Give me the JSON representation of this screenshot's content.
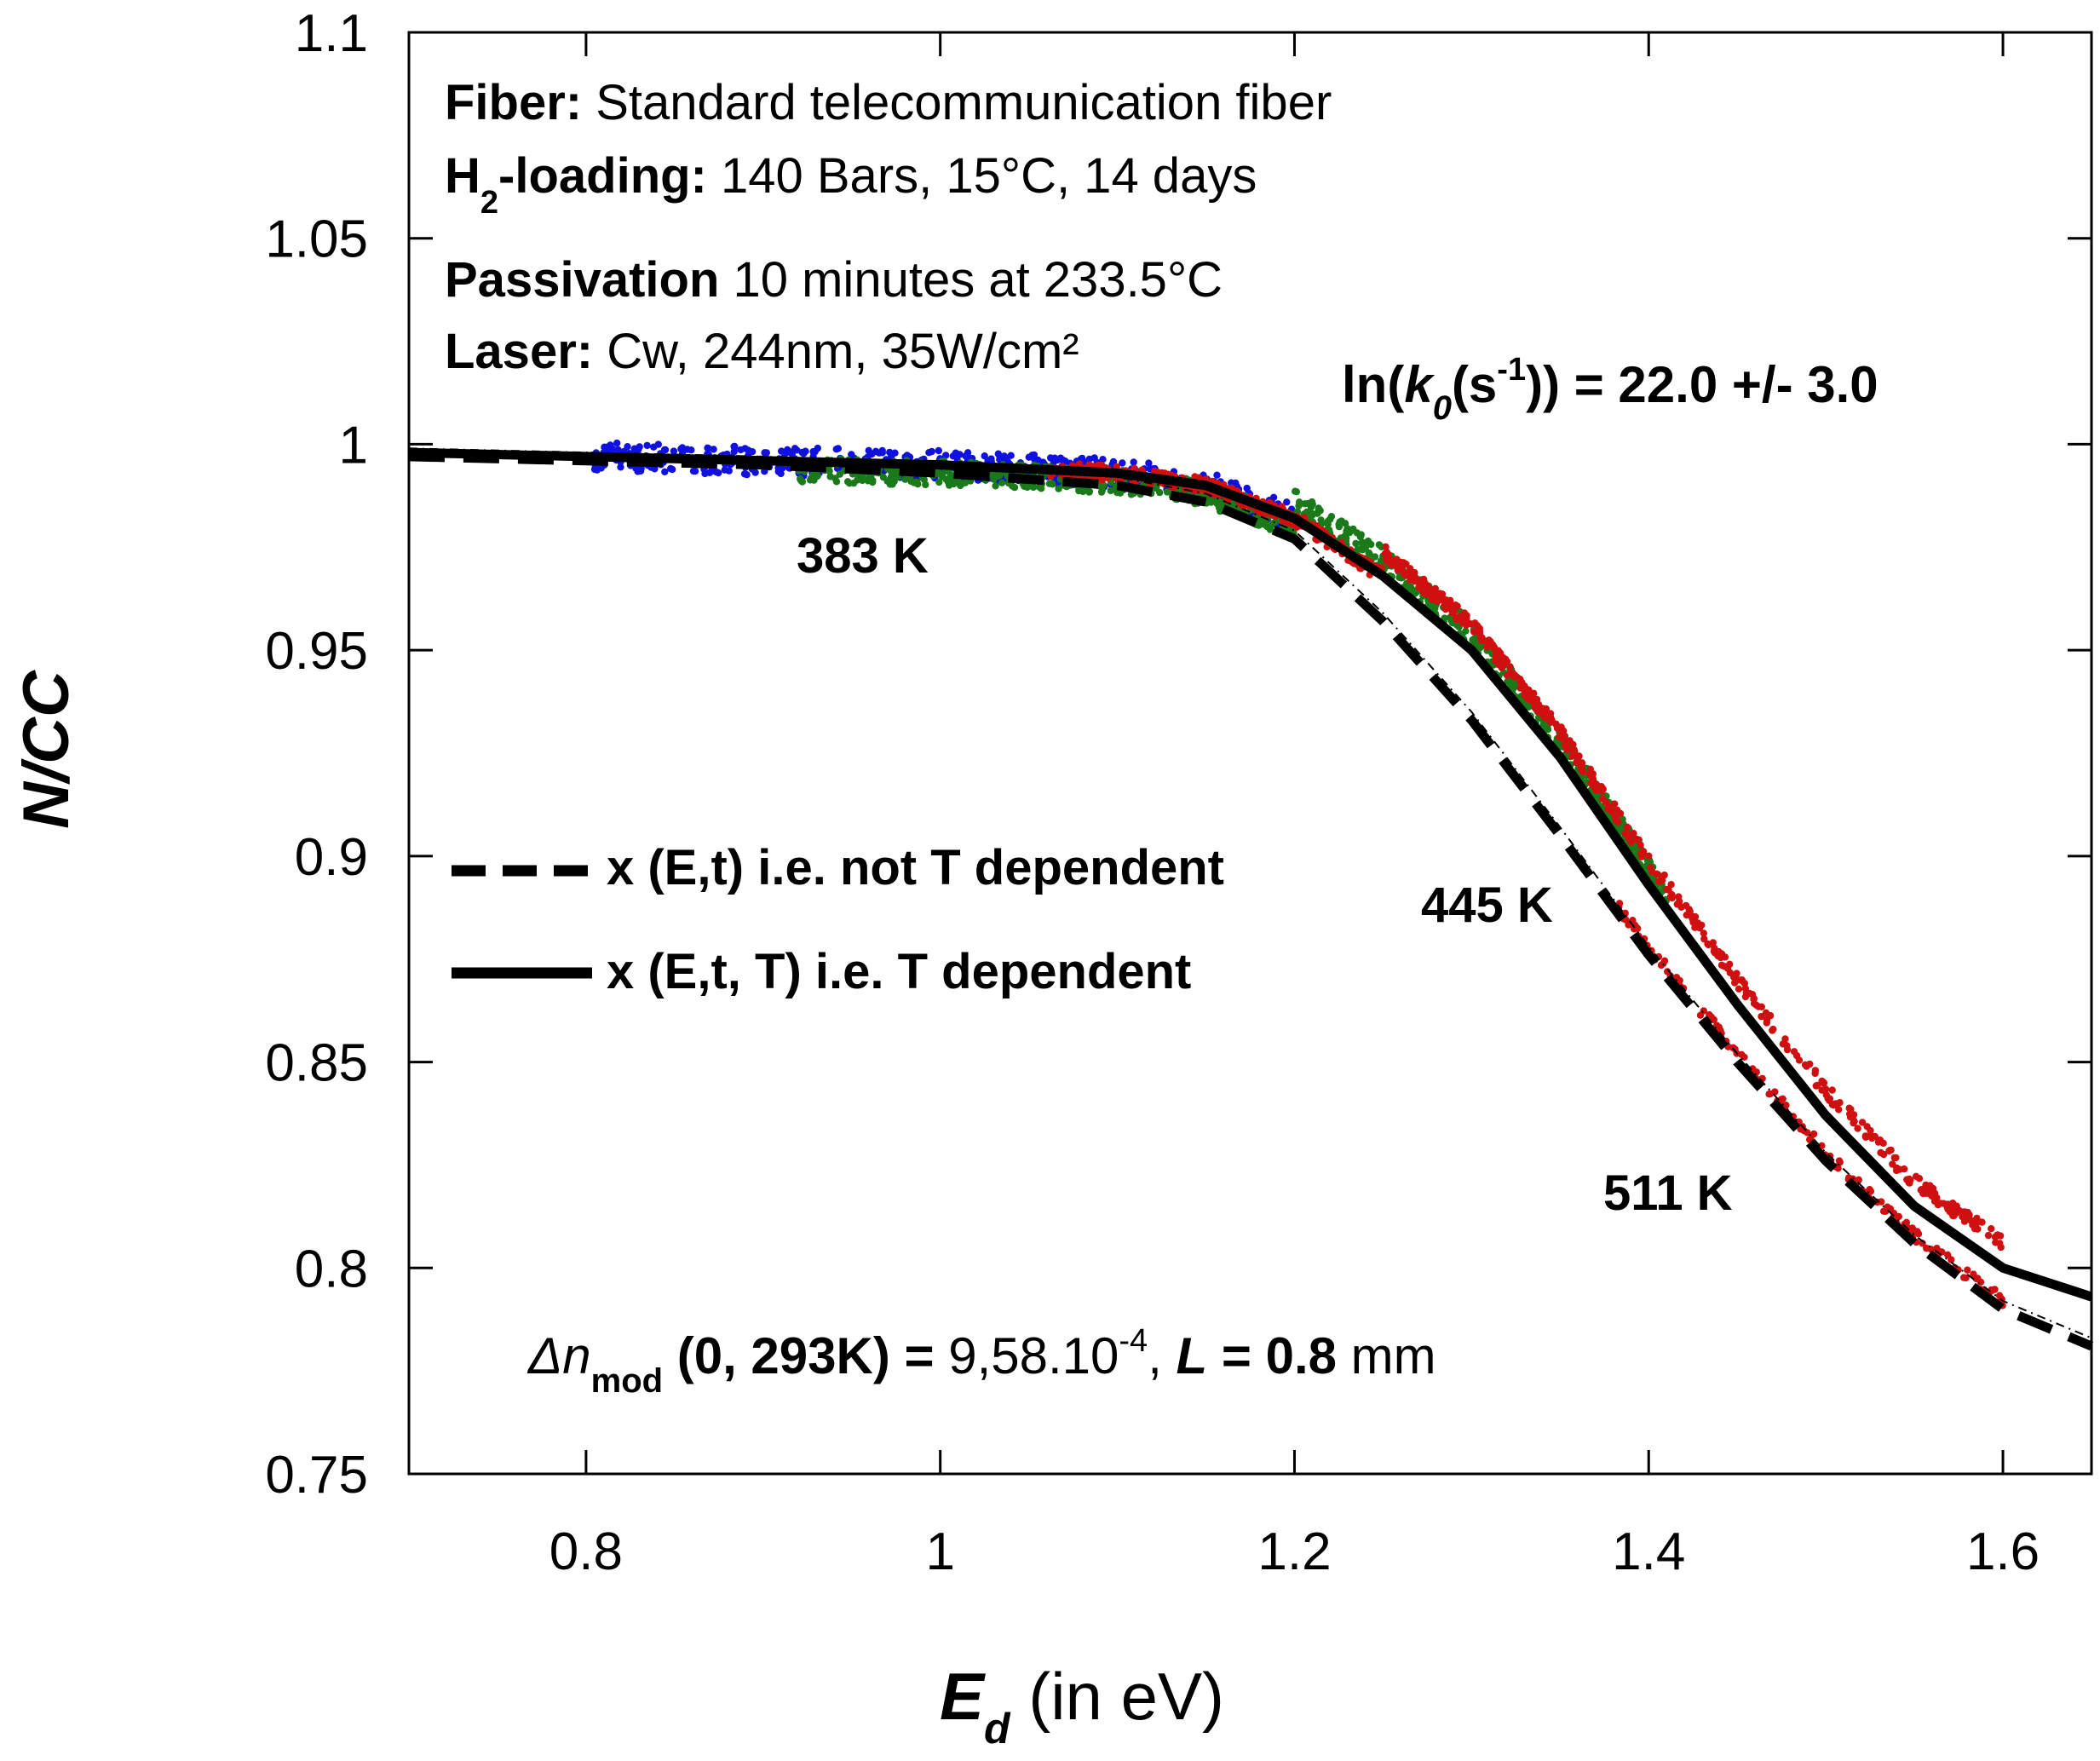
{
  "chart_data": {
    "type": "scatter",
    "xlabel": {
      "main": "E",
      "sub": "d",
      "rest": " (in eV)"
    },
    "ylabel": "N/CC",
    "xlim": [
      0.7,
      1.65
    ],
    "ylim": [
      0.75,
      1.1
    ],
    "xticks": [
      0.8,
      1,
      1.2,
      1.4,
      1.6
    ],
    "xtick_labels": [
      "0.8",
      "1",
      "1.2",
      "1.4",
      "1.6"
    ],
    "yticks": [
      0.75,
      0.8,
      0.85,
      0.9,
      0.95,
      1,
      1.05,
      1.1
    ],
    "ytick_labels": [
      "0.75",
      "0.8",
      "0.85",
      "0.9",
      "0.95",
      "1",
      "1.05",
      "1.1"
    ],
    "grid": false,
    "info": {
      "fiber_label": "Fiber:",
      "fiber_value": " Standard telecommunication fiber",
      "h2_label_h": "H",
      "h2_label_sub": "2",
      "h2_label_rest": "-loading:",
      "h2_value": " 140 Bars, 15°C, 14 days",
      "passivation_label": "Passivation",
      "passivation_value": " 10 minutes at 233.5°C",
      "laser_label": "Laser:",
      "laser_value": " Cw, 244nm, 35W/cm²"
    },
    "k0_annotation": {
      "p1": "ln(",
      "k": "k",
      "sub": "0",
      "p2": "(s",
      "sup": "-1",
      "p3": ")) = 22.0 +/- 3.0"
    },
    "dn_annotation": {
      "delta_n": "Δn",
      "sub": "mod",
      "bold1": " (0, 293K) = ",
      "val": "9,58.10",
      "sup": "-4",
      "comma": ", ",
      "L": "L",
      "eq": " = ",
      "Lval": "0.8",
      "unit": " mm"
    },
    "legend": [
      {
        "label": "x (E,t) i.e. not T dependent",
        "style": "dashed"
      },
      {
        "label": "x (E,t, T) i.e. T dependent",
        "style": "solid"
      }
    ],
    "series": [
      {
        "name": "383 K",
        "color": "#1010e0",
        "x_range": [
          0.8,
          1.2
        ]
      },
      {
        "name": "445 K",
        "color": "#1a7a1a",
        "x_range": [
          0.92,
          1.41
        ]
      },
      {
        "name": "511 K",
        "color": "#d01010",
        "x_range": [
          1.06,
          1.6
        ]
      }
    ],
    "model_T_dependent": {
      "x": [
        0.7,
        0.8,
        0.9,
        1.0,
        1.1,
        1.15,
        1.2,
        1.25,
        1.3,
        1.35,
        1.4,
        1.45,
        1.5,
        1.55,
        1.6,
        1.65
      ],
      "y": [
        0.998,
        0.997,
        0.996,
        0.995,
        0.993,
        0.99,
        0.982,
        0.968,
        0.95,
        0.924,
        0.893,
        0.864,
        0.837,
        0.815,
        0.8,
        0.793
      ]
    },
    "model_not_T_dependent": {
      "x": [
        0.7,
        0.8,
        0.9,
        1.0,
        1.1,
        1.15,
        1.2,
        1.25,
        1.3,
        1.35,
        1.4,
        1.45,
        1.5,
        1.55,
        1.6,
        1.65
      ],
      "y": [
        0.997,
        0.996,
        0.995,
        0.993,
        0.99,
        0.986,
        0.977,
        0.957,
        0.933,
        0.905,
        0.876,
        0.85,
        0.826,
        0.806,
        0.79,
        0.781
      ]
    }
  }
}
